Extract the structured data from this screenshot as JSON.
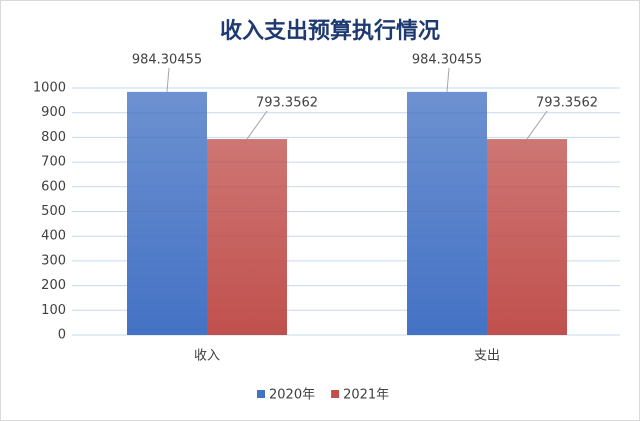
{
  "chart_data": {
    "type": "bar",
    "title": "收入支出预算执行情况",
    "categories": [
      "收入",
      "支出"
    ],
    "series": [
      {
        "name": "2020年",
        "color": "#4472c4",
        "values": [
          984.30455,
          984.30455
        ]
      },
      {
        "name": "2021年",
        "color": "#c0504d",
        "values": [
          793.3562,
          793.3562
        ]
      }
    ],
    "ylim": [
      0,
      1000
    ],
    "yticks": [
      0,
      100,
      200,
      300,
      400,
      500,
      600,
      700,
      800,
      900,
      1000
    ],
    "grid": true,
    "legend": "bottom"
  }
}
